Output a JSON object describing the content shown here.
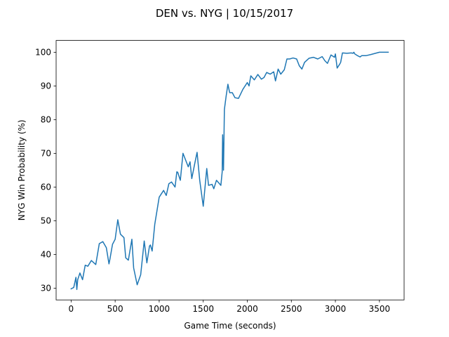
{
  "chart_data": {
    "type": "line",
    "title": "DEN vs. NYG | 10/15/2017",
    "xlabel": "Game Time (seconds)",
    "ylabel": "NYG Win Probability (%)",
    "xlim": [
      -170,
      3780
    ],
    "ylim": [
      26.5,
      103.5
    ],
    "xticks": [
      0,
      500,
      1000,
      1500,
      2000,
      2500,
      3000,
      3500
    ],
    "yticks": [
      30,
      40,
      50,
      60,
      70,
      80,
      90,
      100
    ],
    "grid": false,
    "legend": "none",
    "colors": {
      "line": "#1f77b4",
      "axes": "#000000",
      "background": "#ffffff"
    },
    "series": [
      {
        "x": [
          0,
          30,
          55,
          65,
          75,
          100,
          130,
          160,
          190,
          230,
          280,
          320,
          360,
          400,
          430,
          440,
          470,
          500,
          530,
          560,
          600,
          620,
          650,
          690,
          710,
          750,
          790,
          830,
          860,
          890,
          900,
          920,
          950,
          1000,
          1050,
          1080,
          1110,
          1140,
          1180,
          1200,
          1210,
          1240,
          1270,
          1300,
          1330,
          1350,
          1370,
          1400,
          1430,
          1460,
          1500,
          1540,
          1560,
          1600,
          1620,
          1650,
          1700,
          1715,
          1720,
          1730,
          1740,
          1750,
          1760,
          1780,
          1800,
          1830,
          1860,
          1900,
          1950,
          2000,
          2020,
          2040,
          2080,
          2120,
          2160,
          2190,
          2220,
          2260,
          2300,
          2320,
          2350,
          2380,
          2420,
          2450,
          2480,
          2520,
          2560,
          2590,
          2620,
          2650,
          2700,
          2750,
          2800,
          2850,
          2880,
          2910,
          2950,
          2990,
          3000,
          3020,
          3050,
          3060,
          3080,
          3130,
          3180,
          3200,
          3210,
          3220,
          3250,
          3280,
          3300,
          3350,
          3400,
          3500,
          3600
        ],
        "values": [
          29.8,
          30.2,
          33.2,
          29.6,
          32.5,
          34.5,
          32.5,
          36.8,
          36.5,
          38.2,
          37.0,
          43.2,
          43.8,
          42.0,
          37.2,
          38.5,
          43.0,
          44.5,
          50.3,
          46.0,
          45.0,
          39.0,
          38.3,
          44.5,
          36.0,
          31.0,
          34.0,
          44.0,
          37.5,
          42.5,
          42.8,
          41.0,
          49.0,
          57.0,
          59.0,
          57.5,
          61.0,
          61.5,
          60.0,
          64.5,
          64.4,
          62.0,
          70.0,
          68.0,
          66.0,
          67.5,
          62.5,
          66.5,
          70.3,
          62.0,
          54.3,
          65.5,
          60.5,
          60.8,
          59.5,
          62.0,
          60.5,
          64.5,
          75.5,
          65.0,
          83.0,
          85.0,
          87.0,
          90.5,
          88.0,
          88.0,
          86.5,
          86.3,
          89.0,
          91.0,
          90.0,
          93.0,
          91.8,
          93.4,
          92.0,
          92.5,
          94.0,
          93.5,
          94.2,
          91.5,
          95.0,
          93.5,
          94.8,
          98.0,
          98.0,
          98.3,
          98.0,
          96.0,
          95.0,
          97.0,
          98.2,
          98.5,
          98.0,
          98.7,
          97.5,
          96.7,
          99.2,
          98.5,
          99.5,
          95.3,
          96.5,
          97.0,
          99.8,
          99.7,
          99.8,
          99.7,
          100.0,
          99.5,
          99.0,
          98.6,
          99.0,
          99.0,
          99.3,
          100.0,
          100.0
        ]
      }
    ]
  }
}
